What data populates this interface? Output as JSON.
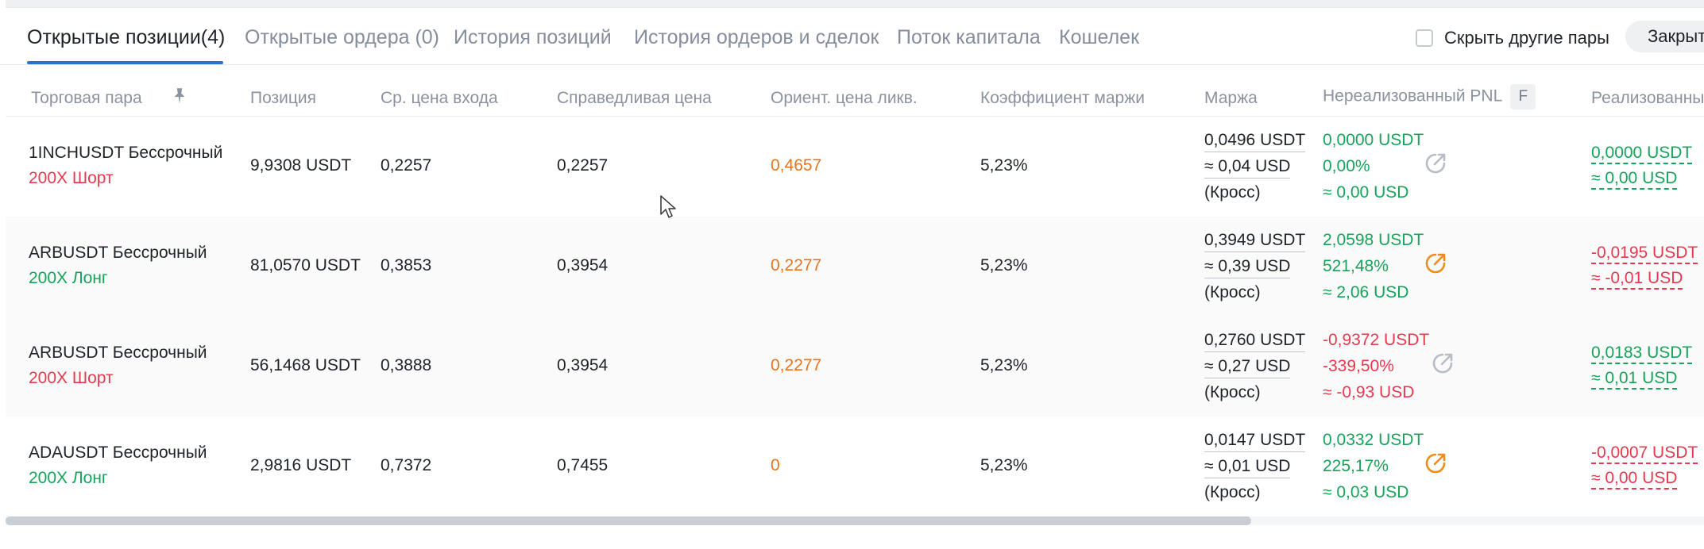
{
  "tabs": [
    {
      "label": "Открытые позиции(4)",
      "active": true
    },
    {
      "label": "Открытые ордера (0)"
    },
    {
      "label": "История позиций"
    },
    {
      "label": "История ордеров и сделок"
    },
    {
      "label": "Поток капитала"
    },
    {
      "label": "Кошелек"
    }
  ],
  "toolbar": {
    "hide_pairs_label": "Скрыть другие пары",
    "close_all_label": "Закрыть"
  },
  "table": {
    "headers": {
      "pair": "Торговая пара",
      "position": "Позиция",
      "entry": "Ср. цена входа",
      "fair": "Справедливая цена",
      "liq": "Ориент. цена ликв.",
      "ratio": "Коэффициент маржи",
      "margin": "Маржа",
      "upnl": "Нереализованный PNL",
      "upnl_badge": "F",
      "rpnl": "Реализованны"
    },
    "rows": [
      {
        "pair": "1INCHUSDT Бессрочный",
        "side": "200X Шорт",
        "position": "9,9308 USDT",
        "entry": "0,2257",
        "fair": "0,2257",
        "liq": "0,4657",
        "ratio": "5,23%",
        "margin_usdt": "0,0496 USDT",
        "margin_usd": "≈ 0,04 USD",
        "margin_mode": "(Кросс)",
        "upnl_usdt": "0,0000 USDT",
        "upnl_pct": "0,00%",
        "upnl_usd": "≈ 0,00 USD",
        "rpnl_usdt": "0,0000 USDT",
        "rpnl_usd": "≈ 0,00 USD"
      },
      {
        "pair": "ARBUSDT Бессрочный",
        "side": "200X Лонг",
        "position": "81,0570 USDT",
        "entry": "0,3853",
        "fair": "0,3954",
        "liq": "0,2277",
        "ratio": "5,23%",
        "margin_usdt": "0,3949 USDT",
        "margin_usd": "≈ 0,39 USD",
        "margin_mode": "(Кросс)",
        "upnl_usdt": "2,0598 USDT",
        "upnl_pct": "521,48%",
        "upnl_usd": "≈ 2,06 USD",
        "rpnl_usdt": "-0,0195 USDT",
        "rpnl_usd": "≈ -0,01 USD"
      },
      {
        "pair": "ARBUSDT Бессрочный",
        "side": "200X Шорт",
        "position": "56,1468 USDT",
        "entry": "0,3888",
        "fair": "0,3954",
        "liq": "0,2277",
        "ratio": "5,23%",
        "margin_usdt": "0,2760 USDT",
        "margin_usd": "≈ 0,27 USD",
        "margin_mode": "(Кросс)",
        "upnl_usdt": "-0,9372 USDT",
        "upnl_pct": "-339,50%",
        "upnl_usd": "≈ -0,93 USD",
        "rpnl_usdt": "0,0183 USDT",
        "rpnl_usd": "≈ 0,01 USD"
      },
      {
        "pair": "ADAUSDT Бессрочный",
        "side": "200X Лонг",
        "position": "2,9816 USDT",
        "entry": "0,7372",
        "fair": "0,7455",
        "liq": "0",
        "ratio": "5,23%",
        "margin_usdt": "0,0147 USDT",
        "margin_usd": "≈ 0,01 USD",
        "margin_mode": "(Кросс)",
        "upnl_usdt": "0,0332 USDT",
        "upnl_pct": "225,17%",
        "upnl_usd": "≈ 0,03 USD",
        "rpnl_usdt": "-0,0007 USDT",
        "rpnl_usd": "≈ 0,00 USD"
      }
    ]
  },
  "icons": {
    "pin": "pin-icon",
    "share": "share-icon",
    "cursor": "mouse-cursor-icon"
  },
  "colors": {
    "accent": "#2a6fd8",
    "positive": "#16a35a",
    "negative": "#e8384f",
    "liquidation": "#e8731d",
    "share_active": "#f08c1a",
    "share_inactive": "#b7bdc6"
  }
}
